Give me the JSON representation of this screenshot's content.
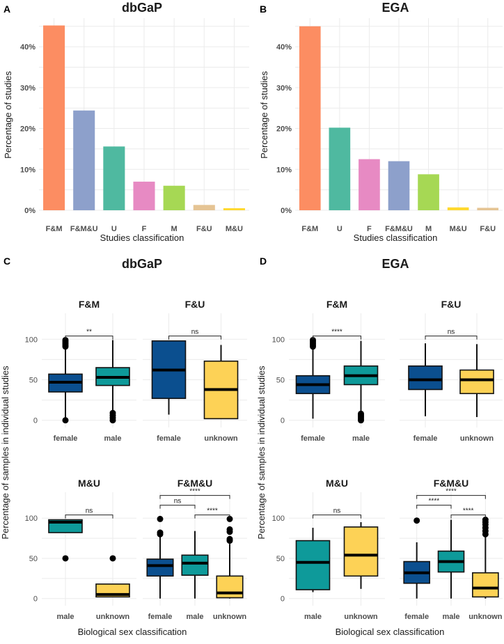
{
  "panel_labels": {
    "a": "A",
    "b": "B",
    "c": "C",
    "d": "D"
  },
  "colors": {
    "F&M": "#fc8d62",
    "F&M&U": "#8da0cb",
    "U": "#4fb9a0",
    "F": "#e78ac3",
    "M": "#a6d854",
    "F&U": "#e5c494",
    "M&U": "#ffd92f",
    "female": "#0b4f8f",
    "male": "#0e9a9a",
    "unknown": "#fdd256"
  },
  "chart_data": [
    {
      "id": "A",
      "type": "bar",
      "title": "dbGaP",
      "xlabel": "Studies classification",
      "ylabel": "Percentage of studies",
      "ylim": [
        0,
        47
      ],
      "yticks": [
        0,
        10,
        20,
        30,
        40
      ],
      "ytick_labels": [
        "0%",
        "10%",
        "20%",
        "30%",
        "40%"
      ],
      "categories": [
        "F&M",
        "F&M&U",
        "U",
        "F",
        "M",
        "F&U",
        "M&U"
      ],
      "values": [
        45.2,
        24.4,
        15.6,
        7.0,
        6.0,
        1.3,
        0.5
      ]
    },
    {
      "id": "B",
      "type": "bar",
      "title": "EGA",
      "xlabel": "Studies classification",
      "ylabel": "Percentage of studies",
      "ylim": [
        0,
        47
      ],
      "yticks": [
        0,
        10,
        20,
        30,
        40
      ],
      "ytick_labels": [
        "0%",
        "10%",
        "20%",
        "30%",
        "40%"
      ],
      "categories": [
        "F&M",
        "U",
        "F",
        "F&M&U",
        "M",
        "M&U",
        "F&U"
      ],
      "values": [
        45.0,
        20.2,
        12.5,
        12.0,
        8.8,
        0.7,
        0.6
      ]
    },
    {
      "id": "C",
      "type": "box",
      "title": "dbGaP",
      "xlabel": "Biological sex classification",
      "ylabel": "Percentage of samples in individual studies",
      "yticks": [
        0,
        50,
        100
      ],
      "facets": [
        {
          "title": "F&M",
          "groups": [
            {
              "name": "female",
              "q1": 35,
              "median": 47,
              "q3": 57,
              "lo": 0,
              "hi": 90,
              "outliers": [
                0,
                91,
                93,
                95,
                97,
                99
              ]
            },
            {
              "name": "male",
              "q1": 43,
              "median": 53,
              "q3": 65,
              "lo": 10,
              "hi": 99,
              "outliers": [
                0,
                3,
                6,
                9
              ]
            }
          ],
          "comparisons": [
            {
              "from": 0,
              "to": 1,
              "label": "**"
            }
          ]
        },
        {
          "title": "F&U",
          "groups": [
            {
              "name": "female",
              "q1": 27,
              "median": 62,
              "q3": 98,
              "lo": 7,
              "hi": 98,
              "outliers": []
            },
            {
              "name": "unknown",
              "q1": 2,
              "median": 38,
              "q3": 73,
              "lo": 2,
              "hi": 93,
              "outliers": []
            }
          ],
          "comparisons": [
            {
              "from": 0,
              "to": 1,
              "label": "ns"
            }
          ]
        },
        {
          "title": "M&U",
          "groups": [
            {
              "name": "male",
              "q1": 82,
              "median": 95,
              "q3": 98,
              "lo": 82,
              "hi": 98,
              "outliers": [
                50
              ]
            },
            {
              "name": "unknown",
              "q1": 2,
              "median": 5,
              "q3": 18,
              "lo": 2,
              "hi": 18,
              "outliers": [
                50
              ]
            }
          ],
          "comparisons": [
            {
              "from": 0,
              "to": 1,
              "label": "ns"
            }
          ]
        },
        {
          "title": "F&M&U",
          "groups": [
            {
              "name": "female",
              "q1": 28,
              "median": 41,
              "q3": 49,
              "lo": 0,
              "hi": 78,
              "outliers": [
                80,
                82,
                99
              ]
            },
            {
              "name": "male",
              "q1": 29,
              "median": 44,
              "q3": 54,
              "lo": 0,
              "hi": 84,
              "outliers": []
            },
            {
              "name": "unknown",
              "q1": 1,
              "median": 7,
              "q3": 28,
              "lo": 0,
              "hi": 68,
              "outliers": [
                72,
                74,
                83,
                86,
                99
              ]
            }
          ],
          "comparisons": [
            {
              "from": 0,
              "to": 1,
              "label": "ns"
            },
            {
              "from": 1,
              "to": 2,
              "label": "****"
            },
            {
              "from": 0,
              "to": 2,
              "label": "****"
            }
          ]
        }
      ]
    },
    {
      "id": "D",
      "type": "box",
      "title": "EGA",
      "xlabel": "Biological sex classification",
      "ylabel": "Percentage of samples in individual studies",
      "yticks": [
        0,
        50,
        100
      ],
      "facets": [
        {
          "title": "F&M",
          "groups": [
            {
              "name": "female",
              "q1": 33,
              "median": 44,
              "q3": 55,
              "lo": 2,
              "hi": 90,
              "outliers": [
                91,
                93,
                95,
                97,
                99
              ]
            },
            {
              "name": "male",
              "q1": 44,
              "median": 55,
              "q3": 67,
              "lo": 10,
              "hi": 98,
              "outliers": [
                0,
                2,
                4,
                6,
                8
              ]
            }
          ],
          "comparisons": [
            {
              "from": 0,
              "to": 1,
              "label": "****"
            }
          ]
        },
        {
          "title": "F&U",
          "groups": [
            {
              "name": "female",
              "q1": 38,
              "median": 50,
              "q3": 67,
              "lo": 5,
              "hi": 95,
              "outliers": []
            },
            {
              "name": "unknown",
              "q1": 33,
              "median": 50,
              "q3": 62,
              "lo": 4,
              "hi": 94,
              "outliers": []
            }
          ],
          "comparisons": [
            {
              "from": 0,
              "to": 1,
              "label": "ns"
            }
          ]
        },
        {
          "title": "M&U",
          "groups": [
            {
              "name": "male",
              "q1": 11,
              "median": 45,
              "q3": 72,
              "lo": 8,
              "hi": 88,
              "outliers": []
            },
            {
              "name": "unknown",
              "q1": 28,
              "median": 54,
              "q3": 89,
              "lo": 12,
              "hi": 95,
              "outliers": []
            }
          ],
          "comparisons": [
            {
              "from": 0,
              "to": 1,
              "label": "ns"
            }
          ]
        },
        {
          "title": "F&M&U",
          "groups": [
            {
              "name": "female",
              "q1": 19,
              "median": 32,
              "q3": 46,
              "lo": 0,
              "hi": 70,
              "outliers": [
                97
              ]
            },
            {
              "name": "male",
              "q1": 33,
              "median": 46,
              "q3": 59,
              "lo": 0,
              "hi": 98,
              "outliers": []
            },
            {
              "name": "unknown",
              "q1": 2,
              "median": 13,
              "q3": 32,
              "lo": 0,
              "hi": 77,
              "outliers": [
                80,
                84,
                88,
                92,
                95,
                98
              ]
            }
          ],
          "comparisons": [
            {
              "from": 0,
              "to": 1,
              "label": "****"
            },
            {
              "from": 1,
              "to": 2,
              "label": "****"
            },
            {
              "from": 0,
              "to": 2,
              "label": "****"
            }
          ]
        }
      ]
    }
  ]
}
